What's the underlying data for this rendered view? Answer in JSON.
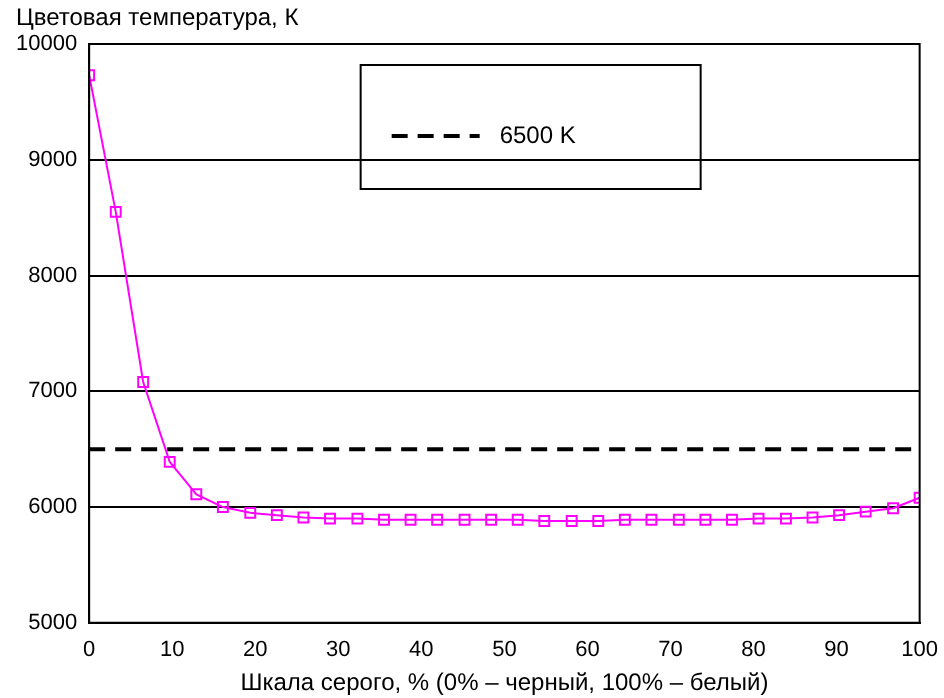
{
  "chart_data": {
    "type": "line",
    "ylabel": "Цветовая температура, К",
    "xlabel": "Шкала серого, % (0% – черный, 100% – белый)",
    "x": [
      0,
      3.2,
      6.5,
      9.7,
      12.9,
      16.1,
      19.4,
      22.6,
      25.8,
      29,
      32.3,
      35.5,
      38.7,
      41.9,
      45.2,
      48.4,
      51.6,
      54.8,
      58.1,
      61.3,
      64.5,
      67.7,
      71,
      74.2,
      77.4,
      80.6,
      83.9,
      87.1,
      90.3,
      93.5,
      96.8,
      100
    ],
    "series": [
      {
        "color": "#ff00ff",
        "values": [
          9730,
          8550,
          7080,
          6390,
          6110,
          6000,
          5950,
          5930,
          5910,
          5900,
          5900,
          5890,
          5890,
          5890,
          5890,
          5890,
          5890,
          5880,
          5880,
          5880,
          5890,
          5890,
          5890,
          5890,
          5890,
          5900,
          5900,
          5910,
          5930,
          5960,
          5990,
          6080
        ]
      }
    ],
    "ref_lines": [
      {
        "axis": "y",
        "value": 6500,
        "label": "6500 K",
        "color": "#000000",
        "line_style": "dashed"
      }
    ],
    "xlim": [
      0,
      100
    ],
    "xticks": [
      0,
      10,
      20,
      30,
      40,
      50,
      60,
      70,
      80,
      90,
      100
    ],
    "ylim": [
      5000,
      10000
    ],
    "yticks": [
      5000,
      6000,
      7000,
      8000,
      9000,
      10000
    ],
    "grid": "y",
    "legend": "top right",
    "marker": "square",
    "line_style": "solid"
  }
}
